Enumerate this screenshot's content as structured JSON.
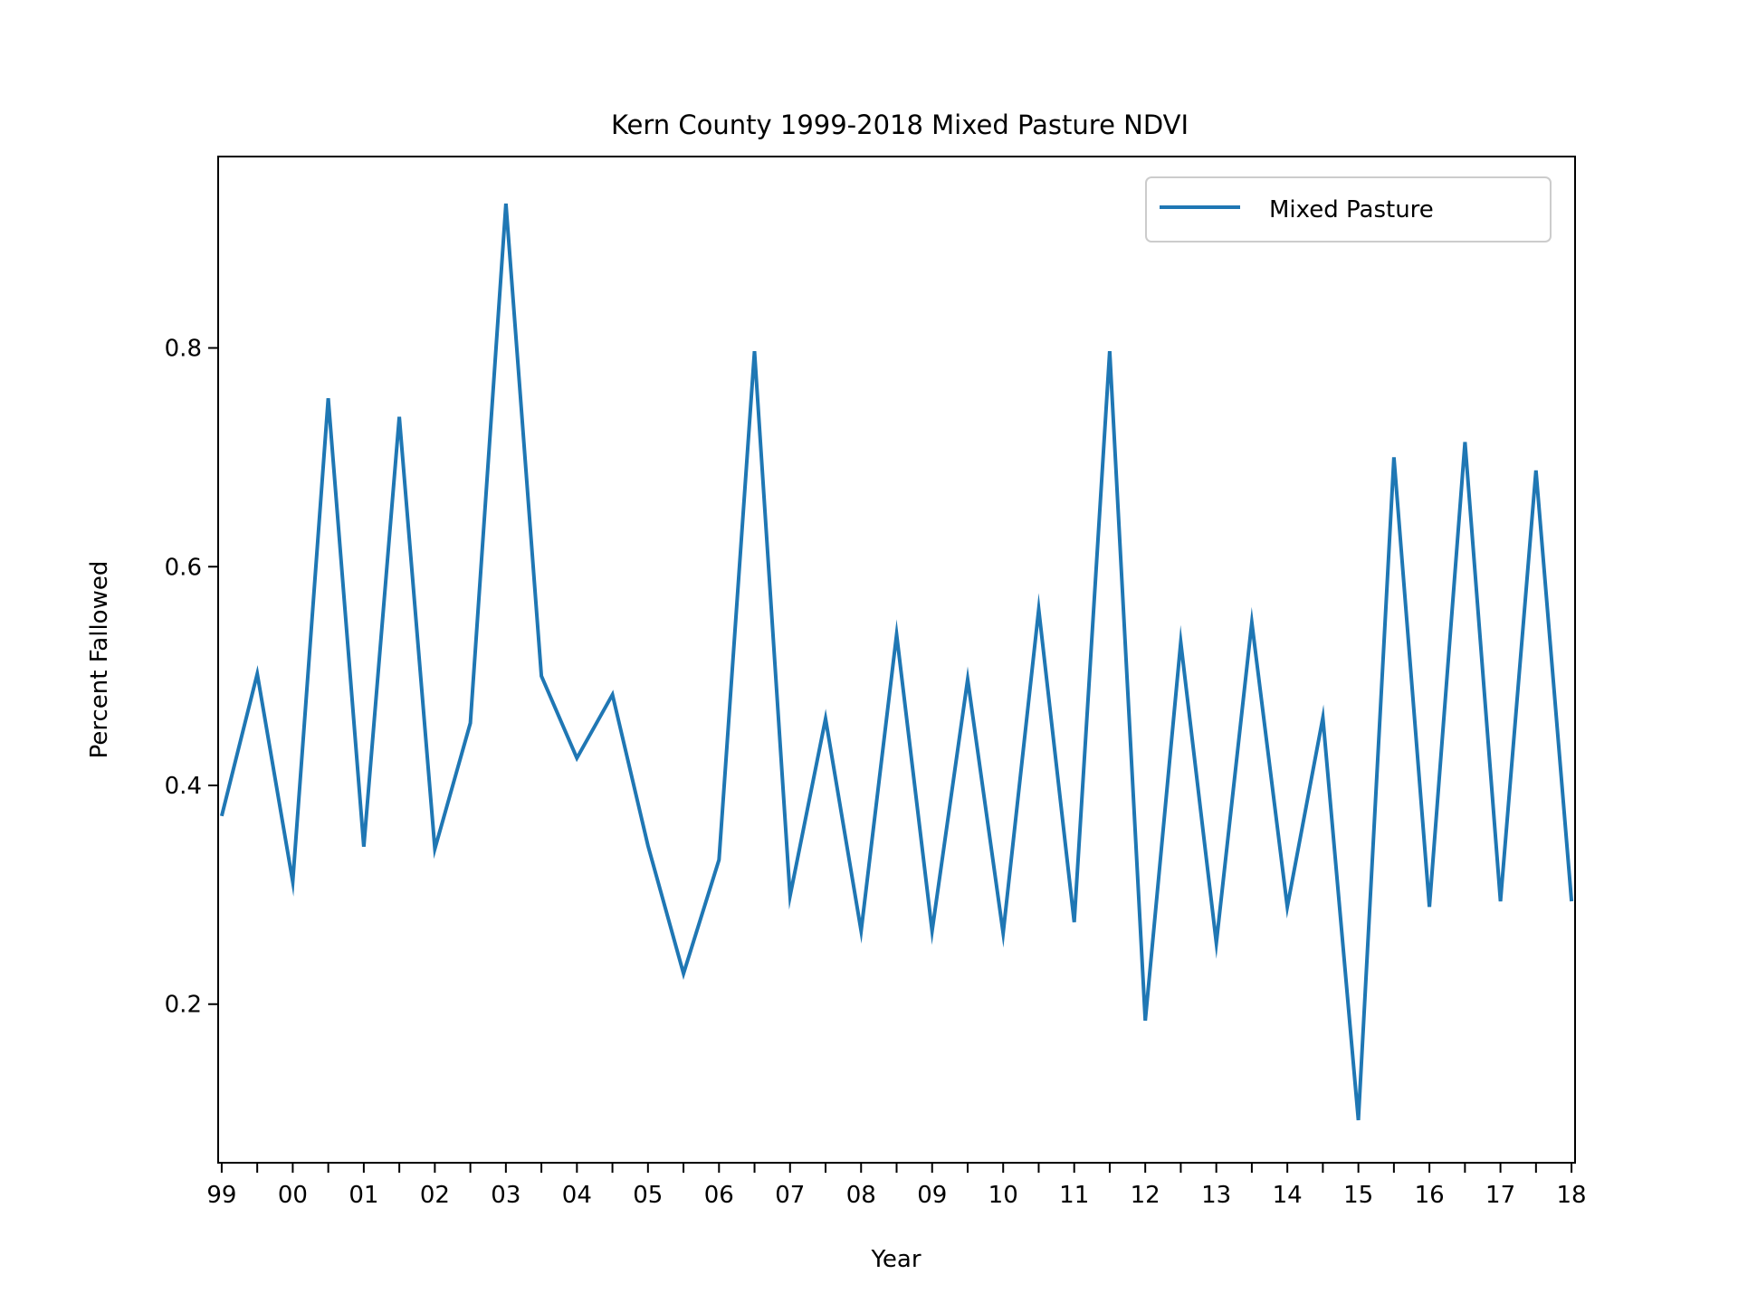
{
  "chart_data": {
    "type": "line",
    "title": "Kern County 1999-2018 Mixed Pasture NDVI",
    "xlabel": "Year",
    "ylabel": "Percent Fallowed",
    "xlim": [
      -0.05,
      19.05
    ],
    "ylim": [
      0.055,
      0.975
    ],
    "grid": false,
    "legend_position": "top-right",
    "x_ticks": [
      0,
      0.5,
      1,
      1.5,
      2,
      2.5,
      3,
      3.5,
      4,
      4.5,
      5,
      5.5,
      6,
      6.5,
      7,
      7.5,
      8,
      8.5,
      9,
      9.5,
      10,
      10.5,
      11,
      11.5,
      12,
      12.5,
      13,
      13.5,
      14,
      14.5,
      15,
      15.5,
      16,
      16.5,
      17,
      17.5,
      18,
      18.5,
      19
    ],
    "x_tick_labels": [
      {
        "x": 0,
        "label": "99"
      },
      {
        "x": 1,
        "label": "00"
      },
      {
        "x": 2,
        "label": "01"
      },
      {
        "x": 3,
        "label": "02"
      },
      {
        "x": 4,
        "label": "03"
      },
      {
        "x": 5,
        "label": "04"
      },
      {
        "x": 6,
        "label": "05"
      },
      {
        "x": 7,
        "label": "06"
      },
      {
        "x": 8,
        "label": "07"
      },
      {
        "x": 9,
        "label": "08"
      },
      {
        "x": 10,
        "label": "09"
      },
      {
        "x": 11,
        "label": "10"
      },
      {
        "x": 12,
        "label": "11"
      },
      {
        "x": 13,
        "label": "12"
      },
      {
        "x": 14,
        "label": "13"
      },
      {
        "x": 15,
        "label": "14"
      },
      {
        "x": 16,
        "label": "15"
      },
      {
        "x": 17,
        "label": "16"
      },
      {
        "x": 18,
        "label": "17"
      },
      {
        "x": 19,
        "label": "18"
      }
    ],
    "y_ticks": [
      {
        "value": 0.2,
        "label": "0.2"
      },
      {
        "value": 0.4,
        "label": "0.4"
      },
      {
        "value": 0.6,
        "label": "0.6"
      },
      {
        "value": 0.8,
        "label": "0.8"
      }
    ],
    "series": [
      {
        "name": "Mixed Pasture",
        "color": "#1f77b4",
        "x": [
          0,
          0.5,
          1,
          1.5,
          2,
          2.5,
          3,
          3.5,
          4,
          4.5,
          5,
          5.5,
          6,
          6.5,
          7,
          7.5,
          8,
          8.5,
          9,
          9.5,
          10,
          10.5,
          11,
          11.5,
          12,
          12.5,
          13,
          13.5,
          14,
          14.5,
          15,
          15.5,
          16,
          16.5,
          17,
          17.5,
          18,
          18.5,
          19
        ],
        "y": [
          0.372,
          0.502,
          0.312,
          0.754,
          0.344,
          0.737,
          0.342,
          0.457,
          0.932,
          0.5,
          0.425,
          0.483,
          0.345,
          0.228,
          0.332,
          0.797,
          0.299,
          0.461,
          0.267,
          0.538,
          0.267,
          0.497,
          0.265,
          0.561,
          0.275,
          0.797,
          0.185,
          0.531,
          0.256,
          0.549,
          0.289,
          0.462,
          0.094,
          0.7,
          0.289,
          0.714,
          0.294,
          0.688,
          0.294
        ]
      }
    ]
  }
}
